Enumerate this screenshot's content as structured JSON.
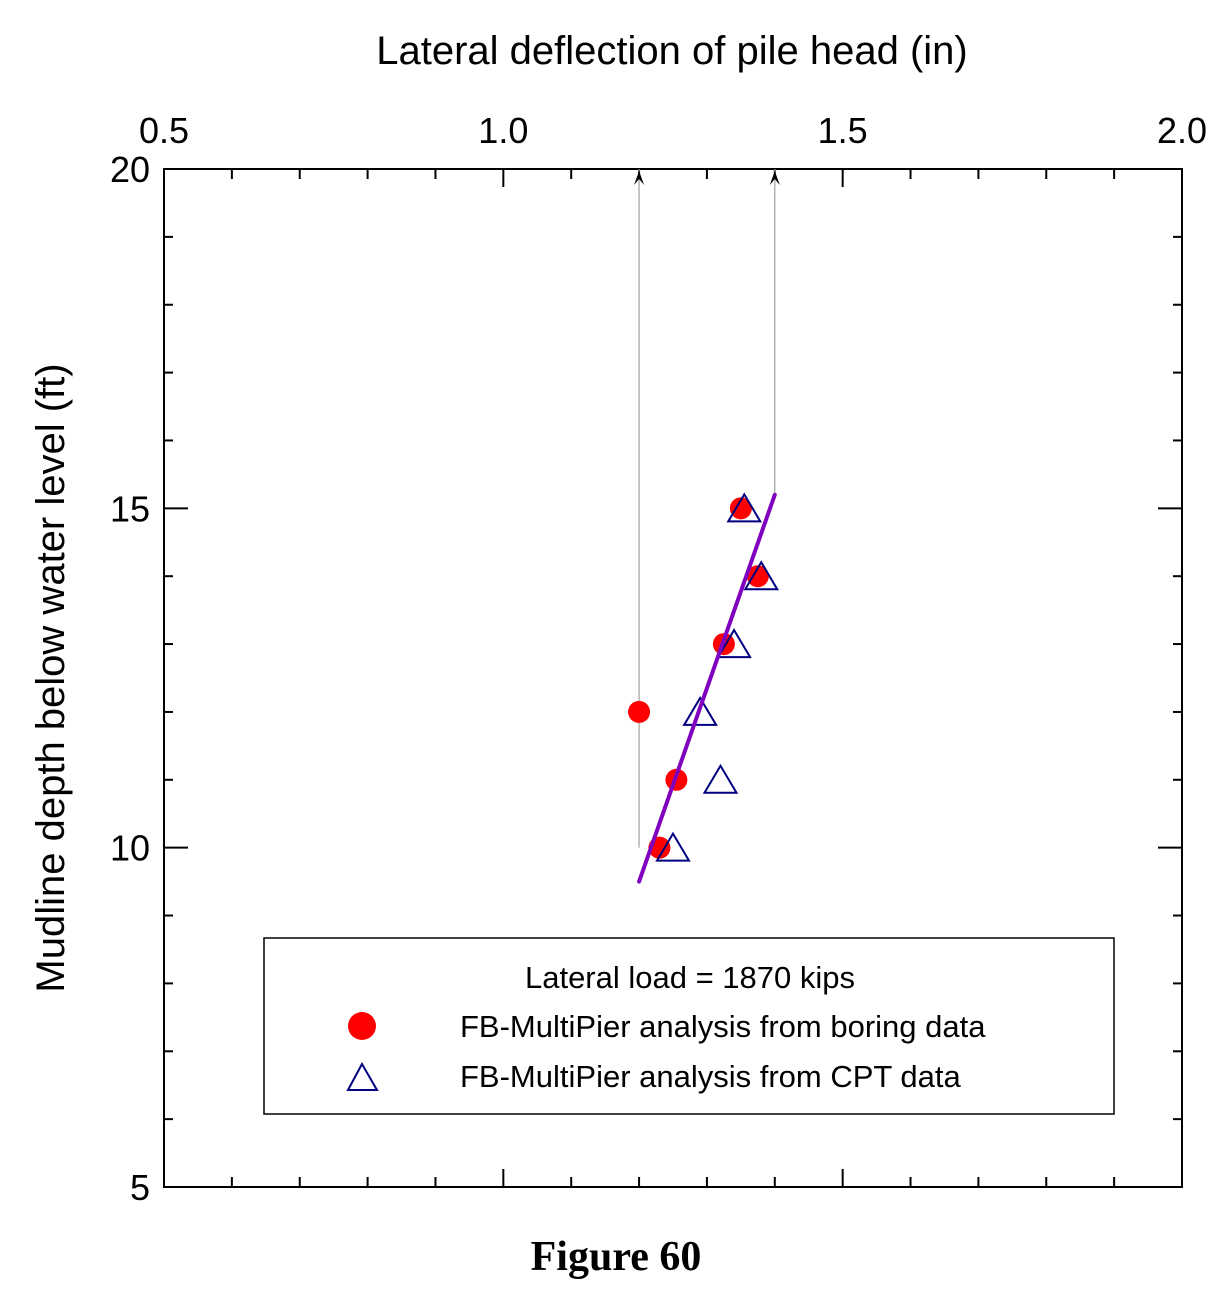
{
  "chart_data": {
    "type": "scatter",
    "title": "",
    "xlabel": "Lateral deflection of pile head (in)",
    "ylabel": "Mudline depth below water level (ft)",
    "xaxis_position": "top",
    "xlim": [
      0.5,
      2.0
    ],
    "ylim": [
      5,
      20
    ],
    "xticks": [
      "0.5",
      "1.0",
      "1.5",
      "2.0"
    ],
    "yticks": [
      "5",
      "10",
      "15",
      "20"
    ],
    "x_minor_step": 0.1,
    "y_minor_step": 1,
    "grid": false,
    "legend_position": "bottom",
    "legend_title": "Lateral load = 1870 kips",
    "series": [
      {
        "name": "FB-MultiPier analysis from boring data",
        "marker": "filled-circle",
        "color": "#ff0000",
        "points": [
          [
            1.35,
            15
          ],
          [
            1.375,
            14
          ],
          [
            1.325,
            13
          ],
          [
            1.2,
            12
          ],
          [
            1.255,
            11
          ],
          [
            1.23,
            10
          ]
        ]
      },
      {
        "name": "FB-MultiPier analysis from CPT data",
        "marker": "open-triangle",
        "color": "#000080",
        "points": [
          [
            1.355,
            15
          ],
          [
            1.38,
            14
          ],
          [
            1.34,
            13
          ],
          [
            1.29,
            12
          ],
          [
            1.32,
            11
          ],
          [
            1.25,
            10
          ]
        ]
      }
    ],
    "trend_line": {
      "color": "#8000c0",
      "points": [
        [
          1.2,
          9.5
        ],
        [
          1.4,
          15.2
        ]
      ]
    },
    "reference_lines": [
      {
        "color": "#a0a0a0",
        "points": [
          [
            1.2,
            10
          ],
          [
            1.2,
            20
          ]
        ],
        "arrow": "up"
      },
      {
        "color": "#a0a0a0",
        "points": [
          [
            1.4,
            15.2
          ],
          [
            1.4,
            20
          ]
        ],
        "arrow": "up"
      }
    ]
  },
  "caption": "Figure 60"
}
